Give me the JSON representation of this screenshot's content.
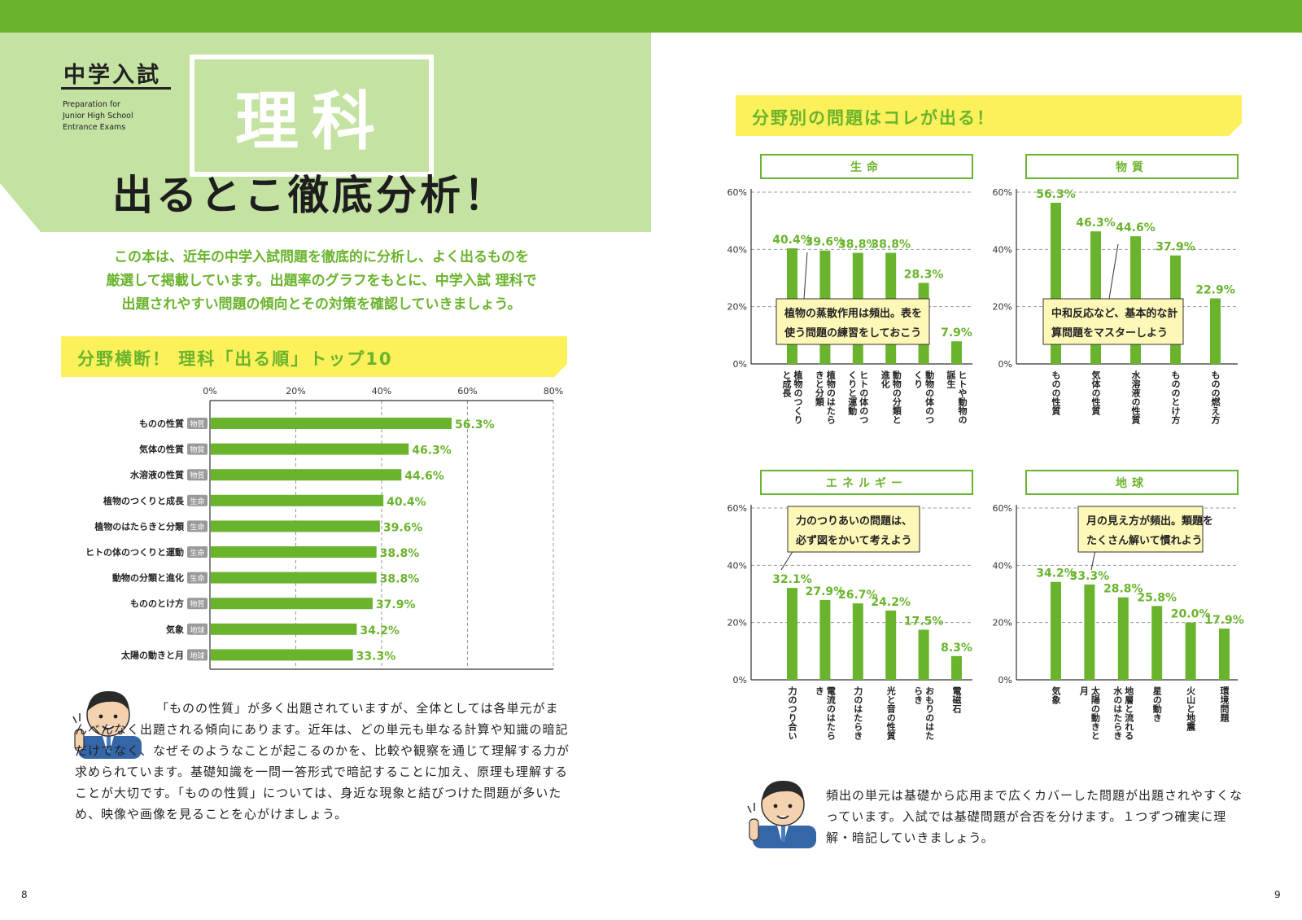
{
  "brand": {
    "title": "中学入試",
    "subtitle": "Preparation for\nJunior High School\nEntrance Exams"
  },
  "subject": "理科",
  "hero_title": "出るとこ徹底分析！",
  "intro": [
    "この本は、近年の中学入試問題を徹底的に分析し、よく出るものを",
    "厳選して掲載しています。出題率のグラフをもとに、中学入試 理科で",
    "出題されやすい問題の傾向とその対策を確認していきましょう。"
  ],
  "left_section_title": "分野横断！ 理科「出る順」トップ10",
  "right_section_title": "分野別の問題はコレが出る！",
  "colors": {
    "green": "#6ab42d",
    "light_green": "#c4e2a2",
    "yellow": "#fcf15a",
    "tag_gray": "#9a9a9a"
  },
  "chart_data": [
    {
      "type": "bar",
      "orientation": "horizontal",
      "title": "分野横断！ 理科「出る順」トップ10",
      "categories": [
        "ものの性質",
        "気体の性質",
        "水溶液の性質",
        "植物のつくりと成長",
        "植物のはたらきと分類",
        "ヒトの体のつくりと運動",
        "動物の分類と進化",
        "もののとけ方",
        "気象",
        "太陽の動きと月"
      ],
      "tags": [
        "物質",
        "物質",
        "物質",
        "生命",
        "生命",
        "生命",
        "生命",
        "物質",
        "地球",
        "地球"
      ],
      "values": [
        56.3,
        46.3,
        44.6,
        40.4,
        39.6,
        38.8,
        38.8,
        37.9,
        34.2,
        33.3
      ],
      "labels": [
        "56.3%",
        "46.3%",
        "44.6%",
        "40.4%",
        "39.6%",
        "38.8%",
        "38.8%",
        "37.9%",
        "34.2%",
        "33.3%"
      ],
      "ticks": [
        "0%",
        "20%",
        "40%",
        "60%",
        "80%"
      ],
      "xlim": [
        0,
        80
      ]
    },
    {
      "type": "bar",
      "title": "生命",
      "categories": [
        "植物のつくりと成長",
        "植物のはたらきと分類",
        "ヒトの体のつくりと運動",
        "動物の分類と進化",
        "動物の体のつくり",
        "ヒトや動物の誕生"
      ],
      "values": [
        40.4,
        39.6,
        38.8,
        38.8,
        28.3,
        7.9
      ],
      "labels": [
        "40.4%",
        "39.6%",
        "38.8%",
        "38.8%",
        "28.3%",
        "7.9%"
      ],
      "ticks": [
        "0%",
        "20%",
        "40%",
        "60%"
      ],
      "ylim": [
        0,
        60
      ],
      "note": [
        "植物の蒸散作用は頻出。表を",
        "使う問題の練習をしておこう"
      ]
    },
    {
      "type": "bar",
      "title": "物質",
      "categories": [
        "ものの性質",
        "気体の性質",
        "水溶液の性質",
        "もののとけ方",
        "ものの燃え方"
      ],
      "values": [
        56.3,
        46.3,
        44.6,
        37.9,
        22.9
      ],
      "labels": [
        "56.3%",
        "46.3%",
        "44.6%",
        "37.9%",
        "22.9%"
      ],
      "ticks": [
        "0%",
        "20%",
        "40%",
        "60%"
      ],
      "ylim": [
        0,
        60
      ],
      "note": [
        "中和反応など、基本的な計",
        "算問題をマスターしよう"
      ]
    },
    {
      "type": "bar",
      "title": "エネルギー",
      "categories": [
        "力のつり合い",
        "電流のはたらき",
        "力のはたらき",
        "光と音の性質",
        "おもりのはたらき",
        "電磁石"
      ],
      "values": [
        32.1,
        27.9,
        26.7,
        24.2,
        17.5,
        8.3
      ],
      "labels": [
        "32.1%",
        "27.9%",
        "26.7%",
        "24.2%",
        "17.5%",
        "8.3%"
      ],
      "ticks": [
        "0%",
        "20%",
        "40%",
        "60%"
      ],
      "ylim": [
        0,
        60
      ],
      "note": [
        "力のつりあいの問題は、",
        "必ず図をかいて考えよう"
      ]
    },
    {
      "type": "bar",
      "title": "地球",
      "categories": [
        "気象",
        "太陽の動きと月",
        "地層と流れる水のはたらき",
        "星の動き",
        "火山と地震",
        "環境問題"
      ],
      "values": [
        34.2,
        33.3,
        28.8,
        25.8,
        20.0,
        17.9
      ],
      "labels": [
        "34.2%",
        "33.3%",
        "28.8%",
        "25.8%",
        "20.0%",
        "17.9%"
      ],
      "ticks": [
        "0%",
        "20%",
        "40%",
        "60%"
      ],
      "ylim": [
        0,
        60
      ],
      "note": [
        "月の見え方が頻出。類題を",
        "たくさん解いて慣れよう"
      ]
    }
  ],
  "comment_left": "「ものの性質」が多く出題されていますが、全体としては各単元がまんべんなく出題される傾向にあります。近年は、どの単元も単なる計算や知識の暗記だけでなく、なぜそのようなことが起こるのかを、比較や観察を通じて理解する力が求められています。基礎知識を一問一答形式で暗記することに加え、原理も理解することが大切です。「ものの性質」については、身近な現象と結びつけた問題が多いため、映像や画像を見ることを心がけましょう。",
  "comment_right": "頻出の単元は基礎から応用まで広くカバーした問題が出題されやすくなっています。入試では基礎問題が合否を分けます。１つずつ確実に理解・暗記していきましょう。",
  "page_left": "8",
  "page_right": "9"
}
